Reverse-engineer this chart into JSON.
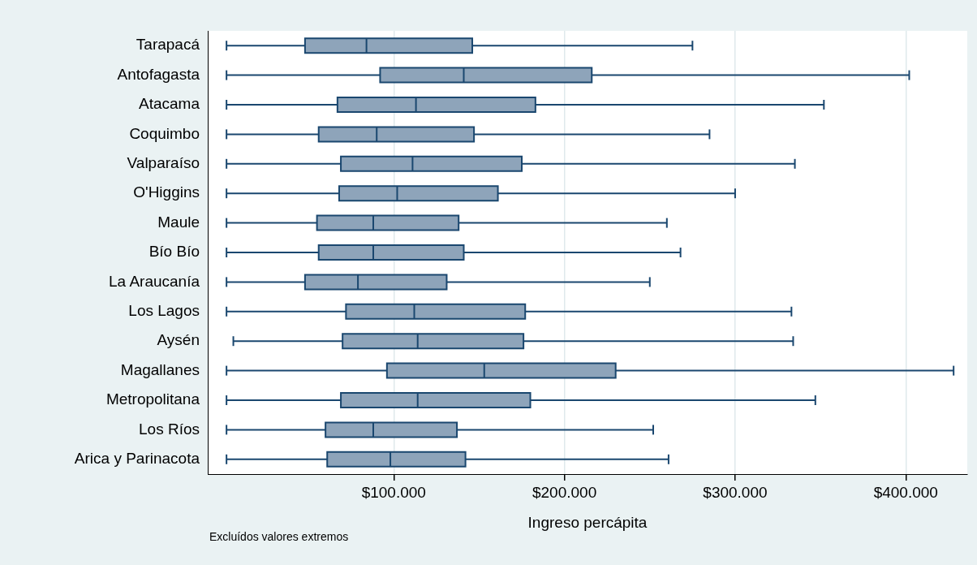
{
  "chart_data": {
    "type": "box",
    "orientation": "horizontal",
    "xlabel": "Ingreso percápita",
    "annotations": [
      "Excluídos valores extremos"
    ],
    "color": "#8ea4ba",
    "grid": "x",
    "categories": [
      "Tarapacá",
      "Antofagasta",
      "Atacama",
      "Coquimbo",
      "Valparaíso",
      "O'Higgins",
      "Maule",
      "Bío Bío",
      "La Araucanía",
      "Los Lagos",
      "Aysén",
      "Magallanes",
      "Metropolitana",
      "Los Ríos",
      "Arica y Parinacota"
    ],
    "xlim": [
      -9000,
      436000
    ],
    "xticks": [
      {
        "value": 100000,
        "label": "$100.000"
      },
      {
        "value": 200000,
        "label": "$200.000"
      },
      {
        "value": 300000,
        "label": "$300.000"
      },
      {
        "value": 400000,
        "label": "$400.000"
      }
    ],
    "boxes": [
      {
        "low": 2000,
        "q1": 48000,
        "median": 84000,
        "q3": 146000,
        "high": 275000
      },
      {
        "low": 2000,
        "q1": 92000,
        "median": 141000,
        "q3": 216000,
        "high": 402000
      },
      {
        "low": 2000,
        "q1": 67000,
        "median": 113000,
        "q3": 183000,
        "high": 352000
      },
      {
        "low": 2000,
        "q1": 56000,
        "median": 90000,
        "q3": 147000,
        "high": 285000
      },
      {
        "low": 2000,
        "q1": 69000,
        "median": 111000,
        "q3": 175000,
        "high": 335000
      },
      {
        "low": 2000,
        "q1": 68000,
        "median": 102000,
        "q3": 161000,
        "high": 300000
      },
      {
        "low": 2000,
        "q1": 55000,
        "median": 88000,
        "q3": 138000,
        "high": 260000
      },
      {
        "low": 2000,
        "q1": 56000,
        "median": 88000,
        "q3": 141000,
        "high": 268000
      },
      {
        "low": 2000,
        "q1": 48000,
        "median": 79000,
        "q3": 131000,
        "high": 250000
      },
      {
        "low": 2000,
        "q1": 72000,
        "median": 112000,
        "q3": 177000,
        "high": 333000
      },
      {
        "low": 6000,
        "q1": 70000,
        "median": 114000,
        "q3": 176000,
        "high": 334000
      },
      {
        "low": 2000,
        "q1": 96000,
        "median": 153000,
        "q3": 230000,
        "high": 428000
      },
      {
        "low": 2000,
        "q1": 69000,
        "median": 114000,
        "q3": 180000,
        "high": 347000
      },
      {
        "low": 2000,
        "q1": 60000,
        "median": 88000,
        "q3": 137000,
        "high": 252000
      },
      {
        "low": 2000,
        "q1": 61000,
        "median": 98000,
        "q3": 142000,
        "high": 261000
      }
    ]
  }
}
